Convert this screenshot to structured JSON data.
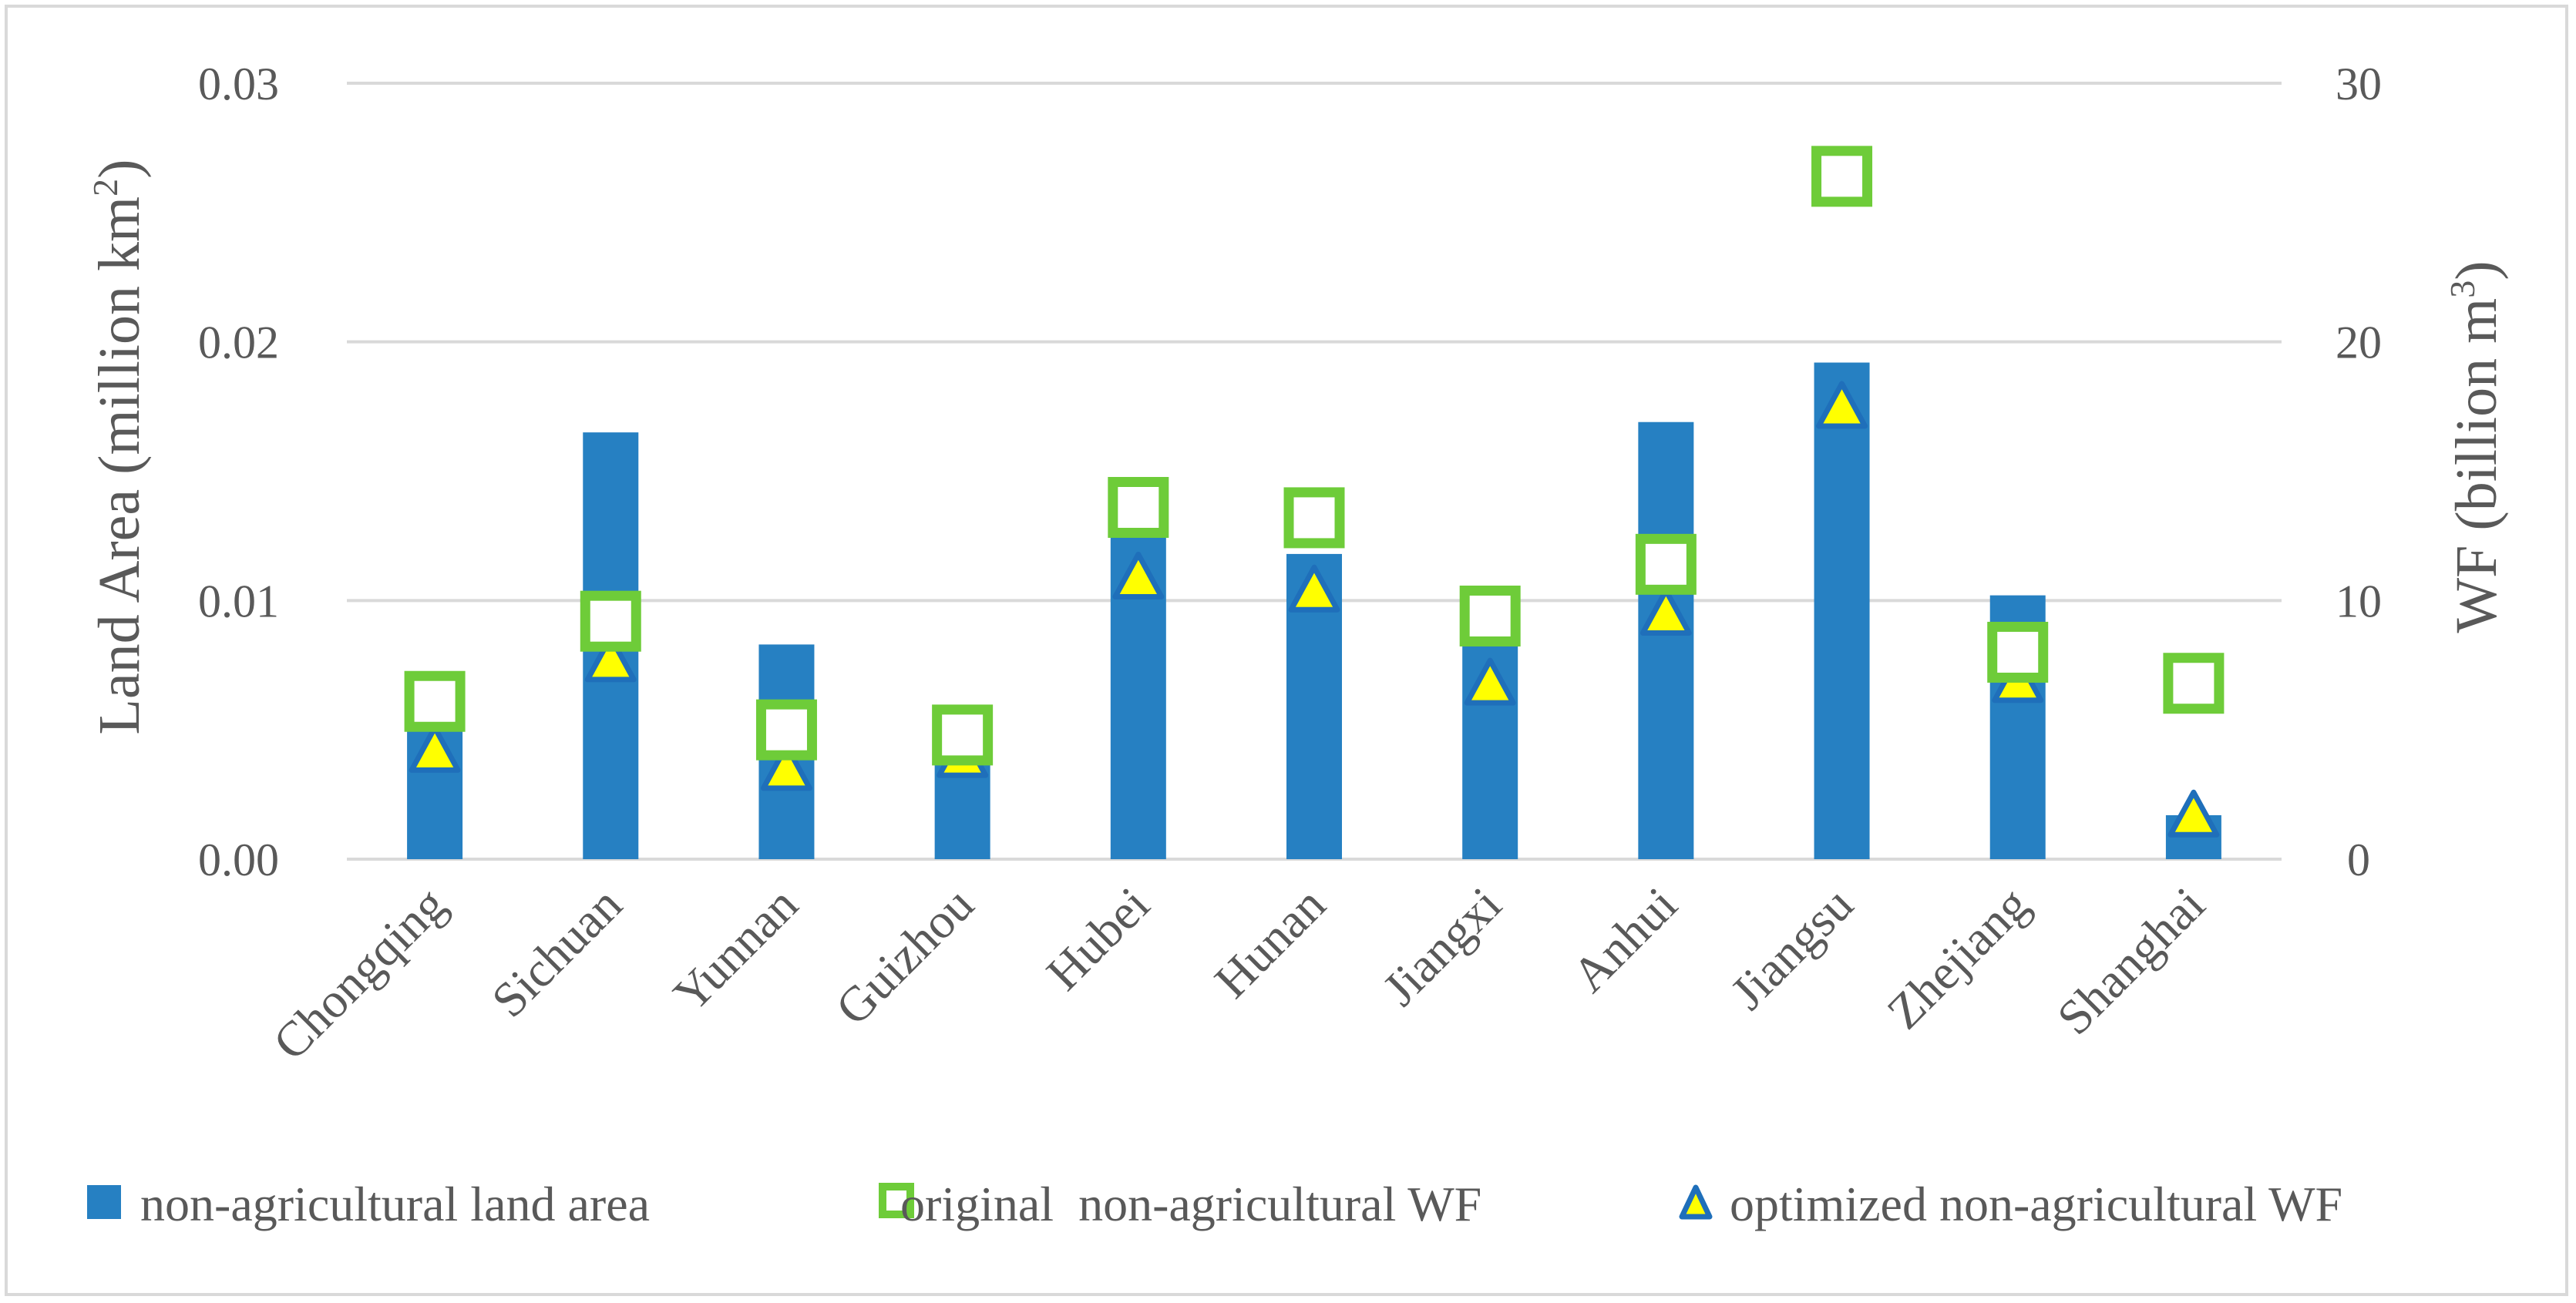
{
  "chart_data": {
    "type": "bar",
    "categories": [
      "Chongqing",
      "Sichuan",
      "Yunnan",
      "Guizhou",
      "Hubei",
      "Hunan",
      "Jiangxi",
      "Anhui",
      "Jiangsu",
      "Zhejiang",
      "Shanghai"
    ],
    "series": [
      {
        "name": "non-agricultural land area",
        "type": "bar",
        "axis": "left",
        "color": "#2680c2",
        "values": [
          0.0051,
          0.0165,
          0.0083,
          0.0059,
          0.0128,
          0.0118,
          0.0083,
          0.0169,
          0.0192,
          0.0102,
          0.0017
        ]
      },
      {
        "name": "original  non-agricultural WF",
        "type": "marker-square",
        "axis": "right",
        "color": "#6ecc39",
        "values": [
          6.1,
          9.2,
          5.0,
          4.8,
          13.6,
          13.2,
          9.4,
          11.4,
          26.4,
          8.0,
          6.8
        ]
      },
      {
        "name": "optimized non-agricultural WF",
        "type": "marker-triangle",
        "axis": "right",
        "color": "#ffff00",
        "values": [
          4.1,
          7.6,
          3.4,
          3.9,
          10.8,
          10.3,
          6.7,
          9.4,
          17.4,
          6.8,
          1.6
        ]
      }
    ],
    "ylabel": "Land Area (million km",
    "ylabel_sup": "2",
    "ylabel_end": ")",
    "y2label": "WF (billion m",
    "y2label_sup": "3",
    "y2label_end": ")",
    "ylim": [
      0,
      0.03
    ],
    "y2lim": [
      0,
      30
    ],
    "yticks": [
      "0.00",
      "0.01",
      "0.02",
      "0.03"
    ],
    "y2ticks": [
      "0",
      "10",
      "20",
      "30"
    ],
    "grid": true,
    "legend_position": "bottom"
  }
}
